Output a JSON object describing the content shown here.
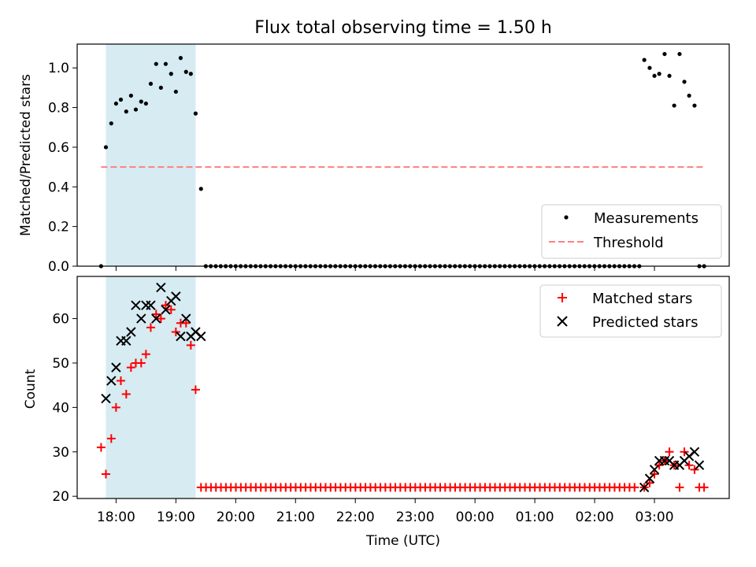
{
  "chart_data": [
    {
      "type": "scatter",
      "title": "Flux total observing time = 1.50 h",
      "ylabel": "Matched/Predicted stars",
      "ylim": [
        0,
        1.12
      ],
      "yticks": [
        "0.0",
        "0.2",
        "0.4",
        "0.6",
        "0.8",
        "1.0"
      ],
      "ytick_values": [
        0,
        0.2,
        0.4,
        0.6,
        0.8,
        1.0
      ],
      "legend_position": "lower-right",
      "highlight": {
        "x_start": 17.83,
        "x_end": 19.33,
        "color": "#add8e6"
      },
      "series": [
        {
          "name": "Measurements",
          "color": "#000000",
          "marker": "dot",
          "x": [
            17.75,
            17.83,
            17.92,
            18.0,
            18.08,
            18.17,
            18.25,
            18.33,
            18.42,
            18.5,
            18.58,
            18.67,
            18.75,
            18.83,
            18.92,
            19.0,
            19.08,
            19.17,
            19.25,
            19.33,
            19.42,
            26.83,
            26.92,
            27.0,
            27.08,
            27.17,
            27.25,
            27.33,
            27.42,
            27.5,
            27.58,
            27.67,
            27.75,
            27.83
          ],
          "y": [
            0.0,
            0.6,
            0.72,
            0.82,
            0.84,
            0.78,
            0.86,
            0.79,
            0.83,
            0.82,
            0.92,
            1.02,
            0.9,
            1.02,
            0.97,
            0.88,
            1.05,
            0.98,
            0.97,
            0.77,
            0.39,
            1.04,
            1.0,
            0.96,
            0.97,
            1.07,
            0.96,
            0.81,
            1.07,
            0.93,
            0.86,
            0.81,
            0.0,
            0.0
          ],
          "baseline": {
            "x_start": 19.5,
            "x_end": 26.75,
            "step": 0.0833,
            "y": 0.0
          }
        },
        {
          "name": "Threshold",
          "color": "#ff7f7f",
          "line": "dashed",
          "x": [
            17.75,
            27.83
          ],
          "y": [
            0.5,
            0.5
          ]
        }
      ]
    },
    {
      "type": "scatter",
      "xlabel": "Time (UTC)",
      "ylabel": "Count",
      "ylim": [
        19.5,
        69.5
      ],
      "yticks": [
        "20",
        "30",
        "40",
        "50",
        "60"
      ],
      "ytick_values": [
        20,
        30,
        40,
        50,
        60
      ],
      "xlim": [
        17.35,
        28.25
      ],
      "xticks": [
        "18:00",
        "19:00",
        "20:00",
        "21:00",
        "22:00",
        "23:00",
        "00:00",
        "01:00",
        "02:00",
        "03:00"
      ],
      "xtick_values": [
        18,
        19,
        20,
        21,
        22,
        23,
        24,
        25,
        26,
        27
      ],
      "legend_position": "upper-right",
      "highlight": {
        "x_start": 17.83,
        "x_end": 19.33,
        "color": "#add8e6"
      },
      "series": [
        {
          "name": "Matched stars",
          "color": "#ff0000",
          "marker": "plus",
          "x": [
            17.75,
            17.83,
            17.92,
            18.0,
            18.08,
            18.17,
            18.25,
            18.33,
            18.42,
            18.5,
            18.58,
            18.67,
            18.75,
            18.83,
            18.92,
            19.0,
            19.08,
            19.17,
            19.25,
            19.33,
            26.83,
            26.92,
            27.0,
            27.08,
            27.17,
            27.25,
            27.33,
            27.42,
            27.5,
            27.58,
            27.67,
            27.75,
            27.83
          ],
          "y": [
            31,
            25,
            33,
            40,
            46,
            43,
            49,
            50,
            50,
            52,
            58,
            61,
            60,
            63,
            62,
            57,
            59,
            59,
            54,
            44,
            22,
            23,
            25,
            27,
            28,
            30,
            27,
            22,
            30,
            27,
            26,
            22,
            22
          ],
          "baseline": {
            "x_start": 19.42,
            "x_end": 26.75,
            "step": 0.0833,
            "y": 22
          }
        },
        {
          "name": "Predicted stars",
          "color": "#000000",
          "marker": "x",
          "x": [
            17.83,
            17.92,
            18.0,
            18.08,
            18.17,
            18.25,
            18.33,
            18.42,
            18.5,
            18.58,
            18.67,
            18.75,
            18.83,
            18.92,
            19.0,
            19.08,
            19.17,
            19.25,
            19.33,
            19.42,
            26.83,
            26.92,
            27.0,
            27.08,
            27.17,
            27.25,
            27.33,
            27.42,
            27.5,
            27.58,
            27.67,
            27.75
          ],
          "y": [
            42,
            46,
            49,
            55,
            55,
            57,
            63,
            60,
            63,
            63,
            60,
            67,
            62,
            64,
            65,
            56,
            60,
            56,
            57,
            56,
            22,
            24,
            26,
            28,
            28,
            28,
            27,
            27,
            28,
            29,
            30,
            27
          ]
        }
      ]
    }
  ]
}
